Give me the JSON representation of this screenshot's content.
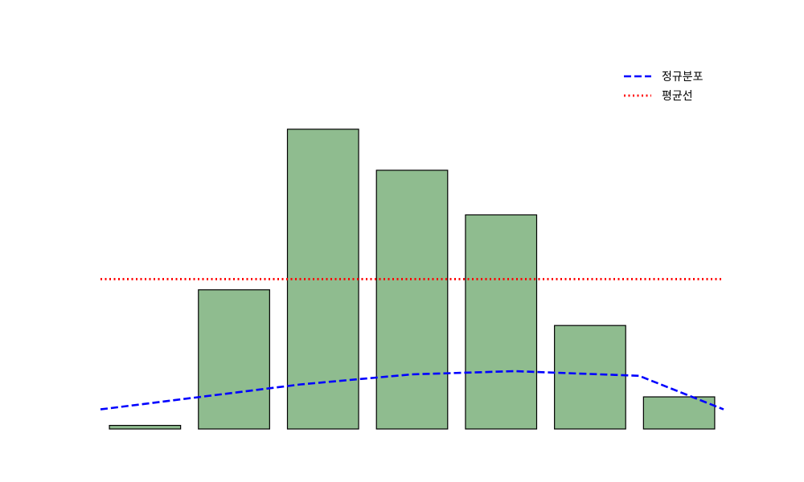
{
  "chart_data": {
    "type": "bar",
    "categories": [
      "",
      "",
      "",
      "",
      "",
      "",
      ""
    ],
    "values": [
      1,
      39,
      84,
      72.5,
      60,
      29,
      9
    ],
    "ylim": [
      0,
      104
    ],
    "grid": false,
    "axes_visible": false,
    "bar_color": "#8fbc8f",
    "bar_edge_color": "#000000",
    "overlays": [
      {
        "name": "정규분포",
        "kind": "line",
        "style": "dashed",
        "color": "#0000ff",
        "x_positions": [
          -0.5,
          1.75,
          3,
          4.15,
          5.55,
          6.5
        ],
        "values": [
          5.5,
          12.5,
          15.3,
          16.2,
          14.9,
          5.5
        ]
      },
      {
        "name": "평균선",
        "kind": "hline",
        "style": "dotted",
        "color": "#ff0000",
        "value": 42
      }
    ],
    "legend": {
      "position": "top-right",
      "entries": [
        {
          "label": "정규분포",
          "color": "#0000ff",
          "style": "dashed"
        },
        {
          "label": "평균선",
          "color": "#ff0000",
          "style": "dotted"
        }
      ]
    }
  }
}
